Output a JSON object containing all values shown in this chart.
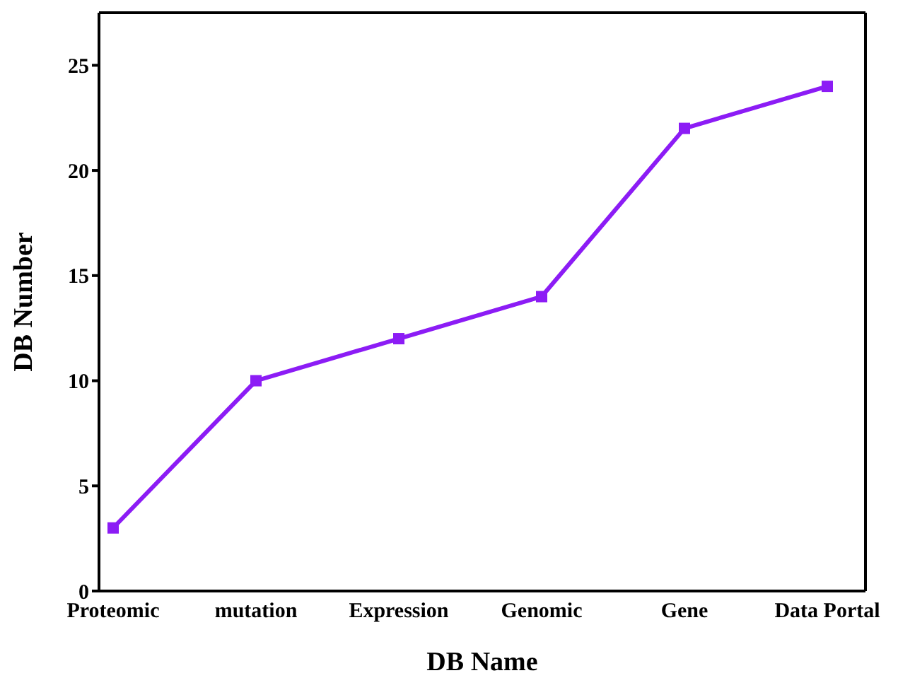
{
  "chart_data": {
    "type": "line",
    "xlabel": "DB Name",
    "ylabel": "DB Number",
    "categories": [
      "Proteomic",
      "mutation",
      "Expression",
      "Genomic",
      "Gene",
      "Data Portal"
    ],
    "series": [
      {
        "color": "#8c1cf5",
        "values": [
          3,
          10,
          12,
          14,
          22,
          24
        ]
      }
    ],
    "ylim": [
      0,
      27.5
    ],
    "yticks": [
      0,
      5,
      10,
      15,
      20,
      25
    ],
    "grid": false,
    "legend": false,
    "marker": "square",
    "line_style": "solid"
  }
}
